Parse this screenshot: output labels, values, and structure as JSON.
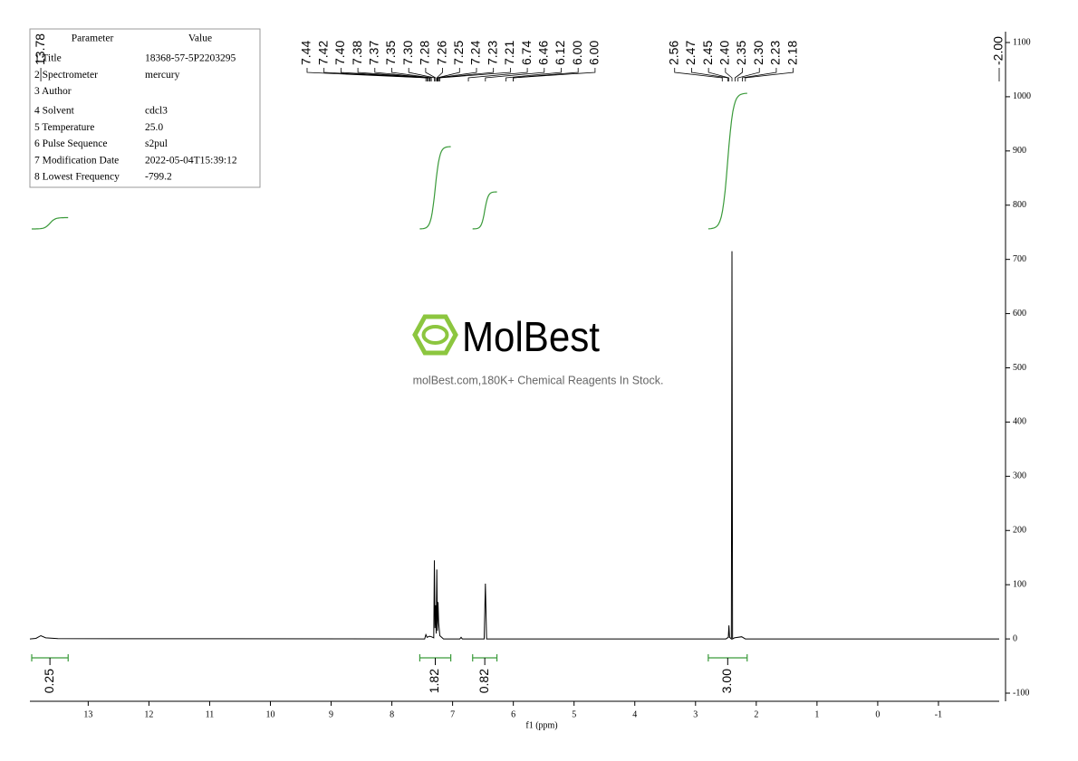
{
  "chart_data": {
    "type": "nmr",
    "xlabel": "f1 (ppm)",
    "color": "#000000",
    "integral_color": "#3a9a3a",
    "xlim": [
      13.96,
      -2.0
    ],
    "ylim": [
      -115,
      1120
    ],
    "xticks": [
      13,
      12,
      11,
      10,
      9,
      8,
      7,
      6,
      5,
      4,
      3,
      2,
      1,
      0,
      -1
    ],
    "yticks": [
      -100,
      0,
      100,
      200,
      300,
      400,
      500,
      600,
      700,
      800,
      900,
      1000,
      1100
    ],
    "x": [
      13.96,
      13.86,
      13.78,
      13.7,
      13.5,
      7.46,
      7.44,
      7.42,
      7.38,
      7.35,
      7.31,
      7.3,
      7.29,
      7.28,
      7.27,
      7.26,
      7.25,
      7.24,
      7.23,
      7.21,
      7.15,
      6.88,
      6.86,
      6.84,
      6.48,
      6.46,
      6.44,
      2.5,
      2.46,
      2.45,
      2.44,
      2.41,
      2.4,
      2.39,
      2.36,
      2.24,
      2.18,
      -2.0
    ],
    "values": [
      0,
      1,
      6,
      2,
      0.5,
      0,
      8,
      3,
      5,
      4,
      2,
      145,
      20,
      62,
      10,
      128,
      15,
      68,
      30,
      6,
      0,
      0,
      3,
      0,
      0,
      102,
      0,
      0,
      3,
      25,
      3,
      0,
      715,
      0,
      2,
      4,
      0,
      0
    ],
    "peak_labels": [
      "13.78",
      "7.44",
      "7.42",
      "7.40",
      "7.38",
      "7.37",
      "7.35",
      "7.30",
      "7.28",
      "7.26",
      "7.25",
      "7.24",
      "7.23",
      "7.21",
      "6.74",
      "6.46",
      "6.12",
      "6.00",
      "6.00",
      "2.56",
      "2.47",
      "2.45",
      "2.40",
      "2.35",
      "2.30",
      "2.23",
      "2.18",
      "-2.00"
    ],
    "integrals": {
      "values": [
        0.25,
        1.82,
        0.82,
        3.0
      ],
      "value_labels": [
        "0.25",
        "1.82",
        "0.82",
        "3.00"
      ],
      "ranges": [
        [
          13.93,
          13.33
        ],
        [
          7.54,
          7.03
        ],
        [
          6.67,
          6.27
        ],
        [
          2.79,
          2.15
        ]
      ]
    }
  },
  "parameters": {
    "header": [
      "Parameter",
      "Value"
    ],
    "rows": [
      [
        "1 Title",
        "18368-57-5P2203295"
      ],
      [
        "2 Spectrometer",
        "mercury"
      ],
      [
        "3 Author",
        ""
      ],
      [
        "4 Solvent",
        "cdcl3"
      ],
      [
        "5 Temperature",
        "25.0"
      ],
      [
        "6 Pulse Sequence",
        "s2pul"
      ],
      [
        "7 Modification Date",
        "2022-05-04T15:39:12"
      ],
      [
        "8 Lowest Frequency",
        "-799.2"
      ]
    ]
  },
  "watermark": {
    "brand": "MolBest",
    "tagline": "molBest.com,180K+ Chemical Reagents In Stock."
  }
}
